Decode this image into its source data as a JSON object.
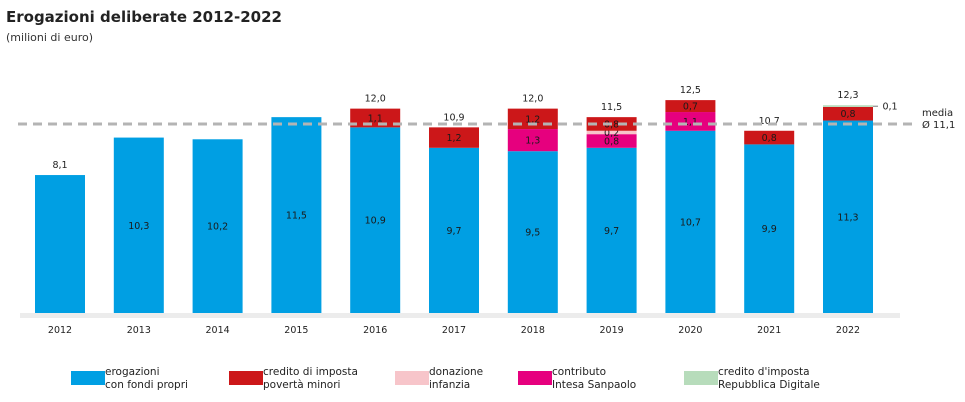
{
  "chart_data": {
    "type": "bar",
    "stacked": true,
    "title": "Erogazioni deliberate 2012-2022",
    "subtitle": "(milioni di euro)",
    "categories": [
      "2012",
      "2013",
      "2014",
      "2015",
      "2016",
      "2017",
      "2018",
      "2019",
      "2020",
      "2021",
      "2022"
    ],
    "totals": [
      8.1,
      10.3,
      10.2,
      11.5,
      12.0,
      10.9,
      12.0,
      11.5,
      12.5,
      10.7,
      12.3
    ],
    "total_labels": [
      "8,1",
      "",
      "",
      "",
      "12,0",
      "10,9",
      "12,0",
      "11,5",
      "12,5",
      "10,7",
      "12,3"
    ],
    "series": [
      {
        "name": "erogazioni con fondi propri",
        "color": "#009fe3",
        "values": [
          8.1,
          10.3,
          10.2,
          11.5,
          10.9,
          9.7,
          9.5,
          9.7,
          10.7,
          9.9,
          11.3
        ],
        "labels": [
          "",
          "10,3",
          "10,2",
          "11,5",
          "10,9",
          "9,7",
          "9,5",
          "9,7",
          "10,7",
          "9,9",
          "11,3"
        ]
      },
      {
        "name": "contributo Intesa Sanpaolo",
        "color": "#e6007e",
        "values": [
          0,
          0,
          0,
          0,
          0,
          0,
          1.3,
          0.8,
          1.1,
          0,
          0
        ],
        "labels": [
          "",
          "",
          "",
          "",
          "",
          "",
          "1,3",
          "0,8",
          "1,1",
          "",
          ""
        ]
      },
      {
        "name": "donazione infanzia",
        "color": "#f7c5ca",
        "values": [
          0,
          0,
          0,
          0,
          0,
          0,
          0,
          0.2,
          0,
          0,
          0
        ],
        "labels": [
          "",
          "",
          "",
          "",
          "",
          "",
          "",
          "0,2",
          "",
          "",
          ""
        ]
      },
      {
        "name": "credito di imposta povertà minori",
        "color": "#cc1719",
        "values": [
          0,
          0,
          0,
          0,
          1.1,
          1.2,
          1.2,
          0.8,
          0.7,
          0.8,
          0.8
        ],
        "labels": [
          "",
          "",
          "",
          "",
          "1,1",
          "1,2",
          "1,2",
          "0,8",
          "0,7",
          "0,8",
          "0,8"
        ]
      },
      {
        "name": "credito d'imposta Repubblica Digitale",
        "color": "#b7dcbb",
        "values": [
          0,
          0,
          0,
          0,
          0,
          0,
          0,
          0,
          0,
          0,
          0.1
        ],
        "labels": [
          "",
          "",
          "",
          "",
          "",
          "",
          "",
          "",
          "",
          "",
          ""
        ]
      }
    ],
    "callout": {
      "value": 0.1,
      "label": "0,1",
      "category": "2022",
      "series": "credito d'imposta Repubblica Digitale"
    },
    "reference_line": {
      "value": 11.1,
      "label_line1": "media",
      "label_line2": "Ø 11,1",
      "style": "dashed",
      "color": "#b4b4b4"
    },
    "ylim": [
      0,
      12.8
    ],
    "grid": false,
    "legend_position": "bottom"
  },
  "legend": [
    {
      "line1": "erogazioni",
      "line2": "con fondi propri",
      "color": "#009fe3"
    },
    {
      "line1": "credito di imposta",
      "line2": "povertà minori",
      "color": "#cc1719"
    },
    {
      "line1": "donazione",
      "line2": "infanzia",
      "color": "#f7c5ca"
    },
    {
      "line1": "contributo",
      "line2": "Intesa Sanpaolo",
      "color": "#e6007e"
    },
    {
      "line1": "credito d'imposta",
      "line2": "Repubblica Digitale",
      "color": "#b7dcbb"
    }
  ],
  "colors": {
    "axis_band": "#ececec",
    "reference": "#b4b4b4"
  }
}
